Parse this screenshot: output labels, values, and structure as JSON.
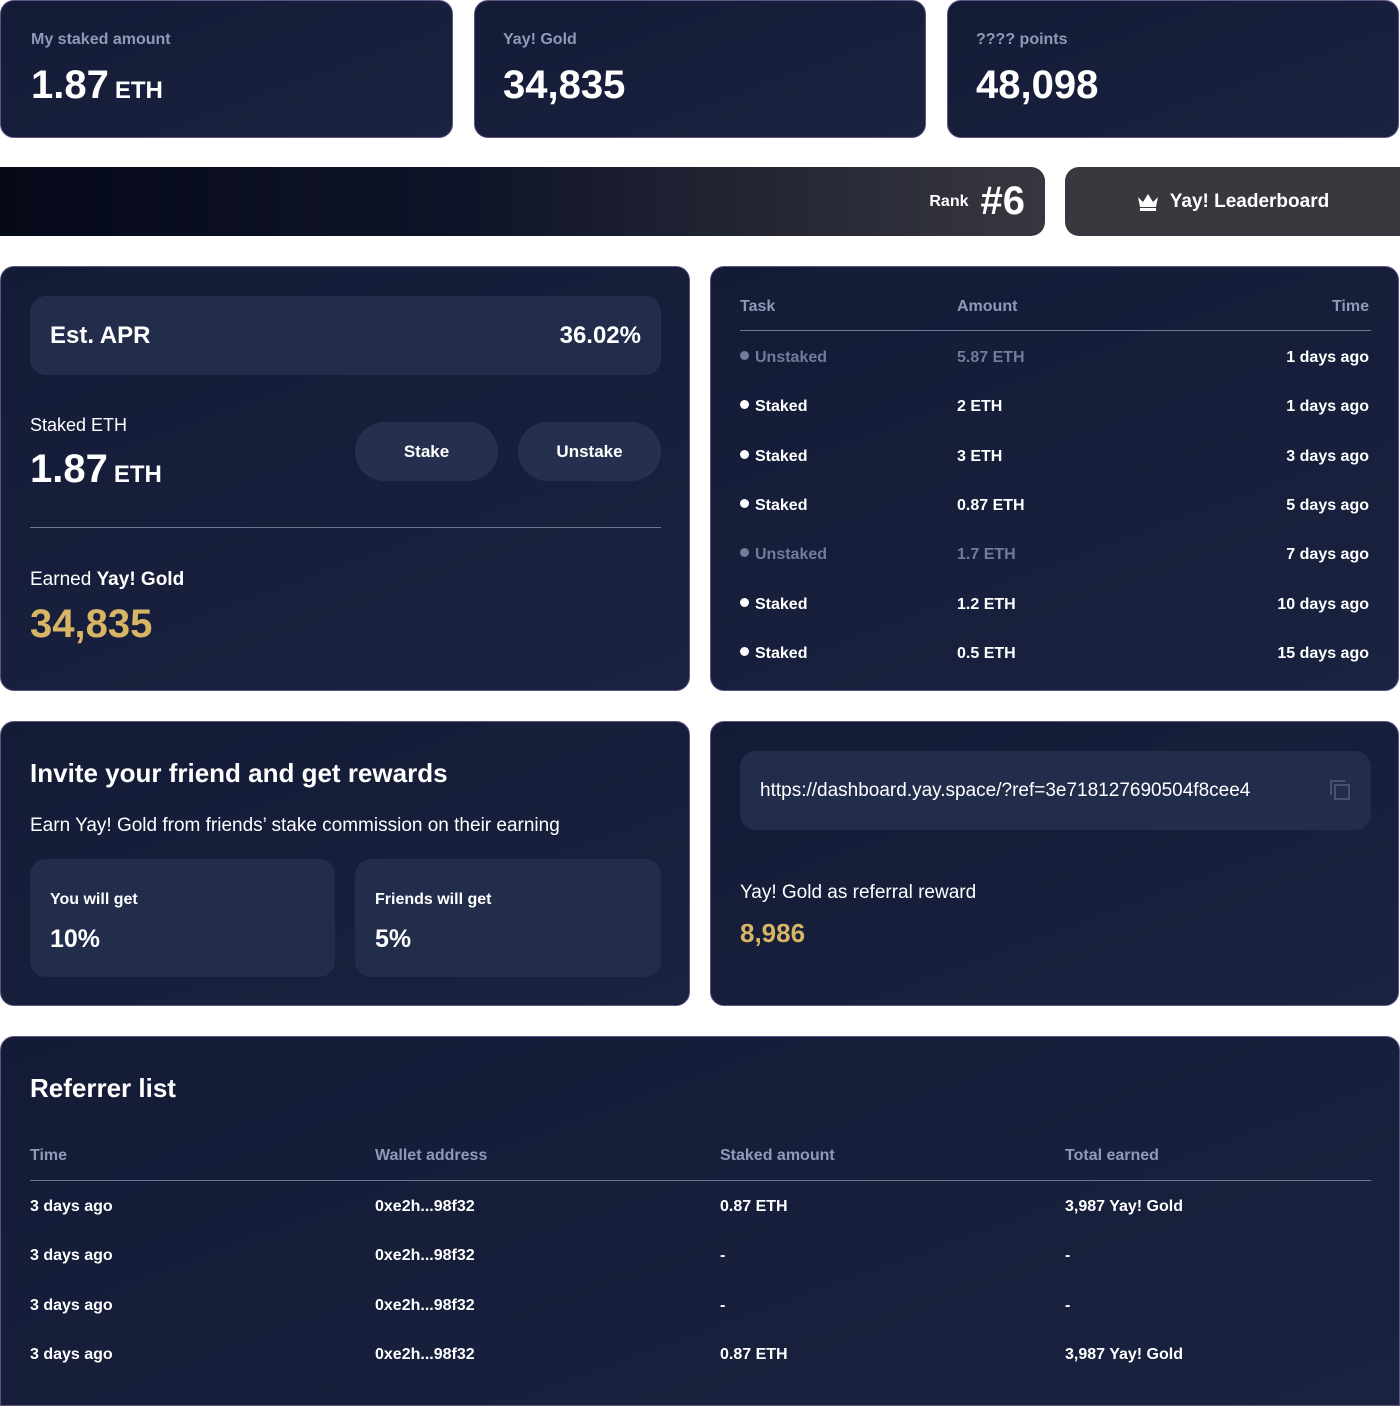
{
  "stats": [
    {
      "label": "My staked amount",
      "value": "1.87",
      "unit": "ETH"
    },
    {
      "label": "Yay! Gold",
      "value": "34,835"
    },
    {
      "label": "???? points",
      "value": "48,098"
    }
  ],
  "rank": {
    "label": "Rank",
    "value": "#6"
  },
  "leaderboard_button": "Yay! Leaderboard",
  "staking": {
    "apr_label": "Est. APR",
    "apr_value": "36.02%",
    "staked_label": "Staked ETH",
    "staked_value": "1.87",
    "staked_unit": "ETH",
    "stake_button": "Stake",
    "unstake_button": "Unstake",
    "earned_label": "Earned",
    "earned_token": "Yay! Gold",
    "earned_value": "34,835"
  },
  "tasks": {
    "columns": [
      "Task",
      "Amount",
      "Time"
    ],
    "rows": [
      [
        "Unstaked",
        "5.87 ETH",
        "1 days ago"
      ],
      [
        "Staked",
        "2 ETH",
        "1 days ago"
      ],
      [
        "Staked",
        "3 ETH",
        "3 days ago"
      ],
      [
        "Staked",
        "0.87 ETH",
        "5 days ago"
      ],
      [
        "Unstaked",
        "1.7 ETH",
        "7 days ago"
      ],
      [
        "Staked",
        "1.2 ETH",
        "10 days ago"
      ],
      [
        "Staked",
        "0.5 ETH",
        "15 days ago"
      ]
    ]
  },
  "invite": {
    "title": "Invite your friend and get rewards",
    "description": "Earn Yay! Gold from friends’ stake commission on their earning",
    "you_label": "You will get",
    "you_value": "10%",
    "friends_label": "Friends will get",
    "friends_value": "5%"
  },
  "referral": {
    "link": "https://dashboard.yay.space/?ref=3e718127690504f8cee4",
    "reward_label": "Yay! Gold as referral reward",
    "reward_value": "8,986"
  },
  "referrers": {
    "title": "Referrer list",
    "columns": [
      "Time",
      "Wallet address",
      "Staked amount",
      "Total earned"
    ],
    "rows": [
      [
        "3 days ago",
        "0xe2h...98f32",
        "0.87 ETH",
        "3,987 Yay! Gold"
      ],
      [
        "3 days ago",
        "0xe2h...98f32",
        "-",
        "-"
      ],
      [
        "3 days ago",
        "0xe2h...98f32",
        "-",
        "-"
      ],
      [
        "3 days ago",
        "0xe2h...98f32",
        "0.87 ETH",
        "3,987 Yay! Gold"
      ]
    ]
  }
}
